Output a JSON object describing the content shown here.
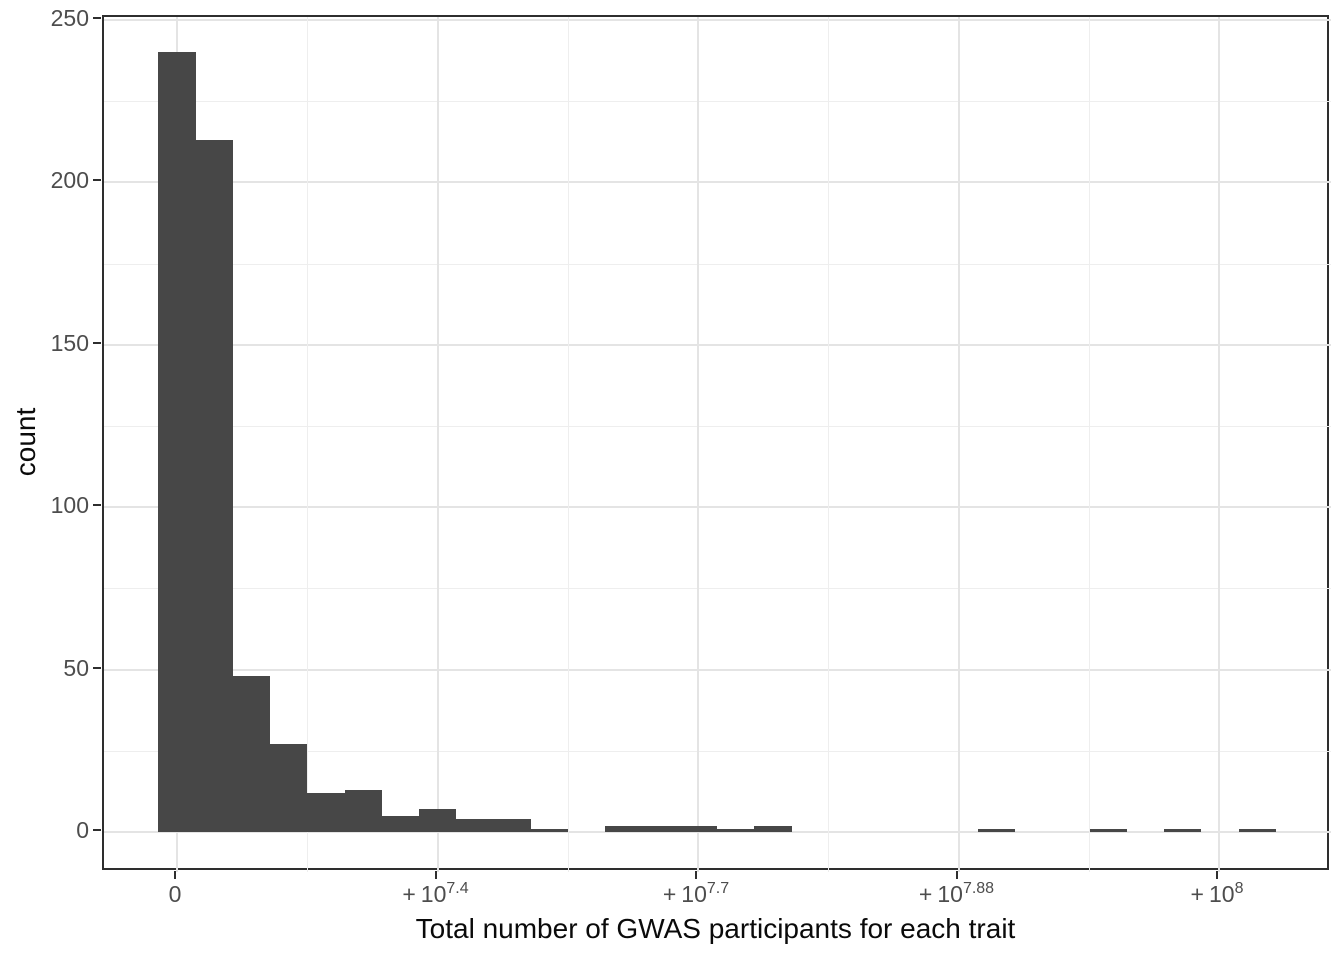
{
  "chart_data": {
    "type": "histogram",
    "title": "",
    "xlabel": "Total number of GWAS participants for each trait",
    "ylabel": "count",
    "x_axis": {
      "ticks": [
        {
          "label_text": "0",
          "prefix": "",
          "base": "0",
          "exp": ""
        },
        {
          "label_text": "+10^7.4",
          "prefix": "+",
          "base": "10",
          "exp": "7.4"
        },
        {
          "label_text": "+10^7.7",
          "prefix": "+",
          "base": "10",
          "exp": "7.7"
        },
        {
          "label_text": "+10^7.88",
          "prefix": "+",
          "base": "10",
          "exp": "7.88"
        },
        {
          "label_text": "+10^8",
          "prefix": "+",
          "base": "10",
          "exp": "8"
        }
      ],
      "minor_gridlines_at_half_steps": true
    },
    "y_axis": {
      "ticks": [
        0,
        50,
        100,
        150,
        200,
        250
      ],
      "minor_step": 25,
      "range_rendered": [
        -12.3,
        250.9
      ]
    },
    "bins": {
      "bin_width_in_tick_units": 0.14305,
      "first_bin_centered_on_first_tick": true,
      "counts_by_index": [
        [
          0,
          240
        ],
        [
          1,
          213
        ],
        [
          2,
          48
        ],
        [
          3,
          27
        ],
        [
          4,
          12
        ],
        [
          5,
          13
        ],
        [
          6,
          5
        ],
        [
          7,
          7
        ],
        [
          8,
          4
        ],
        [
          9,
          4
        ],
        [
          10,
          1
        ],
        [
          12,
          2
        ],
        [
          13,
          2
        ],
        [
          14,
          2
        ],
        [
          15,
          1
        ],
        [
          16,
          2
        ],
        [
          22,
          1
        ],
        [
          25,
          1
        ],
        [
          27,
          1
        ],
        [
          29,
          1
        ]
      ]
    },
    "colors": {
      "bar": "#474747",
      "grid_major": "#e4e4e4",
      "grid_minor": "#eeeeee",
      "panel_border": "#2e2e2e",
      "tick_mark": "#2e2e2e",
      "tick_label": "#4d4d4d",
      "axis_title": "#0a0a0a",
      "background": "#ffffff"
    }
  }
}
